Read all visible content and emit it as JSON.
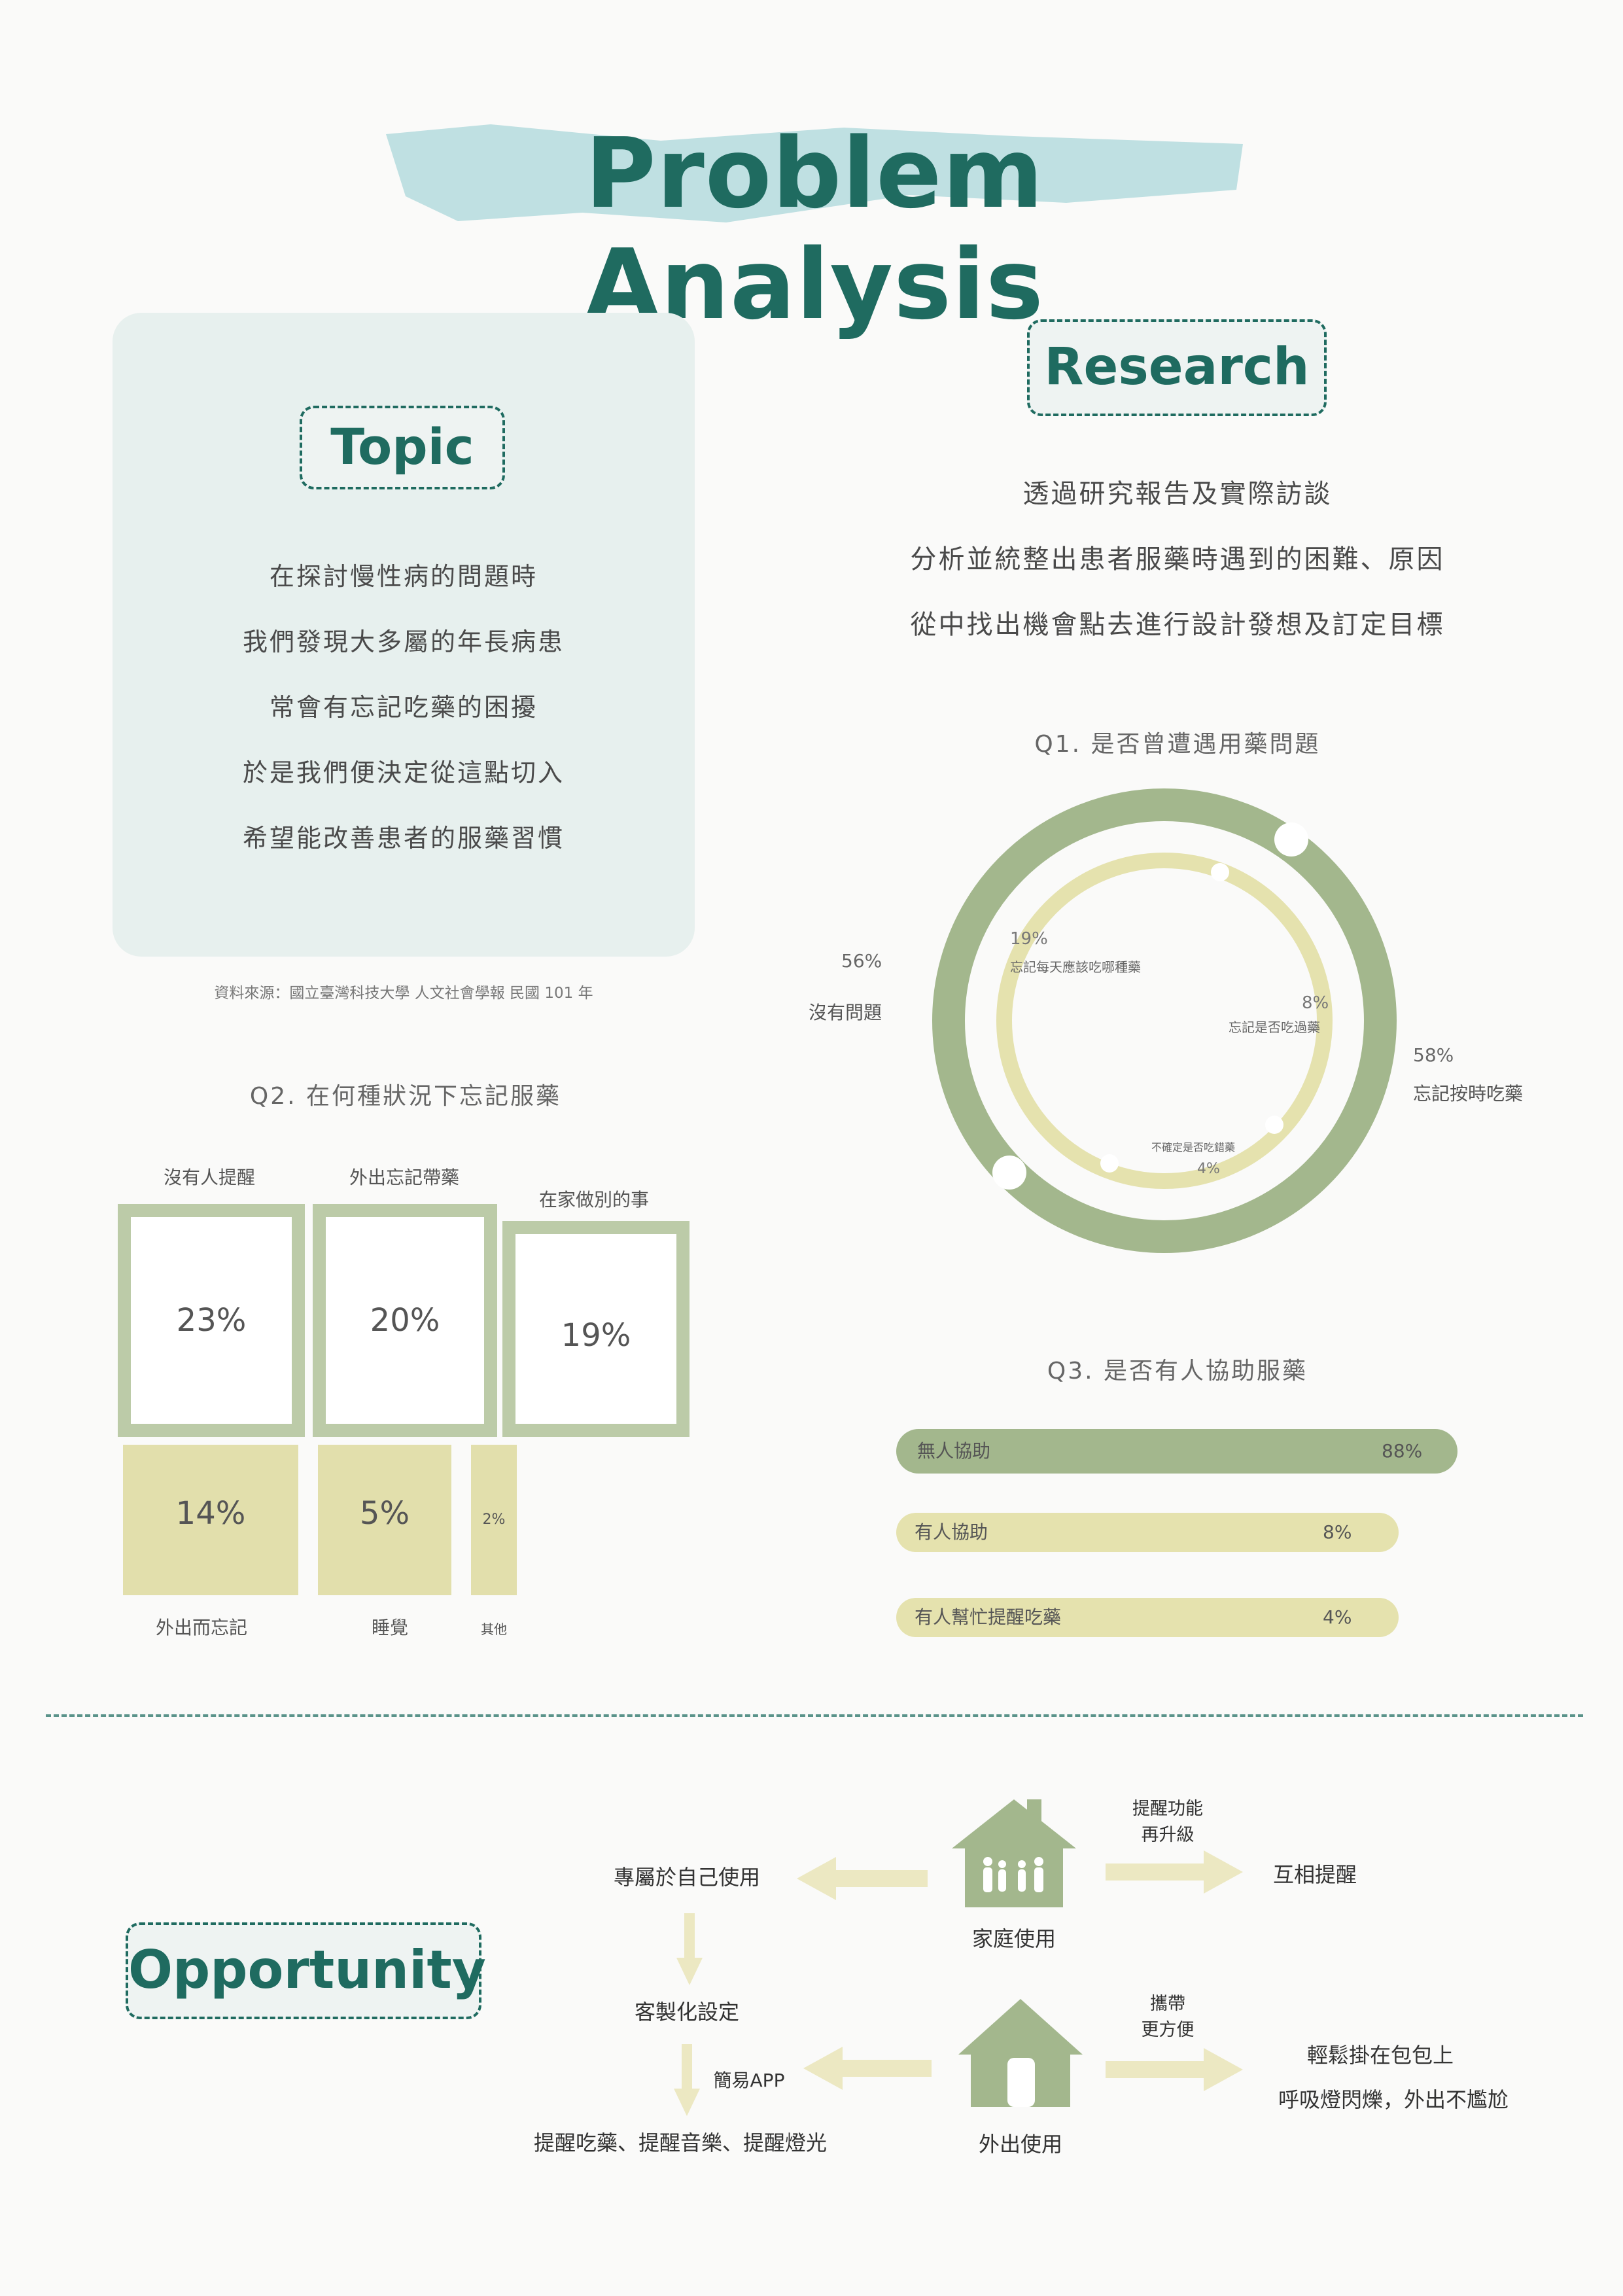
{
  "title": "Problem Analysis",
  "topic": {
    "label": "Topic",
    "lines": [
      "在探討慢性病的問題時",
      "我們發現大多屬的年長病患",
      "常會有忘記吃藥的困擾",
      "於是我們便決定從這點切入",
      "希望能改善患者的服藥習慣"
    ],
    "source": "資料來源：國立臺灣科技大學 人文社會學報 民國 101 年"
  },
  "research": {
    "label": "Research",
    "lines": [
      "透過研究報告及實際訪談",
      "分析並統整出患者服藥時遇到的困難、原因",
      "從中找出機會點去進行設計發想及訂定目標"
    ]
  },
  "chart_data": [
    {
      "type": "pie",
      "title": "Q1. 是否曾遭遇用藥問題",
      "rings": [
        {
          "name": "outer",
          "slices": [
            {
              "label": "沒有問題",
              "value": 56,
              "value_text": "56%"
            },
            {
              "label": "忘記按時吃藥",
              "value": 58,
              "value_text": "58%"
            }
          ]
        },
        {
          "name": "inner",
          "slices": [
            {
              "label": "忘記每天應該吃哪種藥",
              "value": 19,
              "value_text": "19%"
            },
            {
              "label": "忘記是否吃過藥",
              "value": 8,
              "value_text": "8%"
            },
            {
              "label": "不確定是否吃錯藥",
              "value": 4,
              "value_text": "4%"
            }
          ]
        }
      ],
      "colors": {
        "outer": "#a3b78d",
        "inner": "#e5e2ae"
      }
    },
    {
      "type": "bar",
      "title": "Q2. 在何種狀況下忘記服藥",
      "categories": [
        "沒有人提醒",
        "外出忘記帶藥",
        "在家做別的事",
        "外出而忘記",
        "睡覺",
        "其他"
      ],
      "values": [
        23,
        20,
        19,
        14,
        5,
        2
      ],
      "value_texts": [
        "23%",
        "20%",
        "19%",
        "14%",
        "5%",
        "2%"
      ],
      "colors": {
        "top": "#bccba8",
        "bottom": "#e2dfac"
      }
    },
    {
      "type": "bar",
      "title": "Q3. 是否有人協助服藥",
      "categories": [
        "無人協助",
        "有人協助",
        "有人幫忙提醒吃藥"
      ],
      "values": [
        88,
        8,
        4
      ],
      "value_texts": [
        "88%",
        "8%",
        "4%"
      ],
      "colors": [
        "#a3b78d",
        "#e5e2ae",
        "#e5e2ae"
      ]
    }
  ],
  "opportunity": {
    "label": "Opportunity",
    "home_label": "家庭使用",
    "outdoor_label": "外出使用",
    "home_right_note": [
      "提醒功能",
      "再升級"
    ],
    "home_right_result": "互相提醒",
    "home_left_result": "專屬於自己使用",
    "custom": "客製化設定",
    "simple_app": "簡易APP",
    "reminders": "提醒吃藥、提醒音樂、提醒燈光",
    "outdoor_note": [
      "攜帶",
      "更方便"
    ],
    "outdoor_result": [
      "輕鬆掛在包包上",
      "呼吸燈閃爍，外出不尷尬"
    ],
    "icons": [
      "family-house-icon",
      "house-icon",
      "arrow-left-icon",
      "arrow-right-icon",
      "arrow-down-icon"
    ],
    "colors": {
      "house": "#a3b78d",
      "arrow": "#ece8c2"
    }
  }
}
